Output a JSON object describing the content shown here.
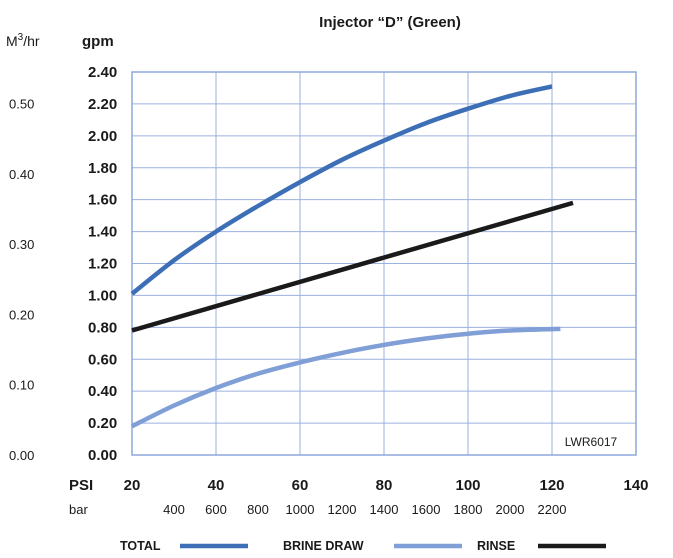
{
  "chart_data": {
    "type": "line",
    "title": "Injector “D” (Green)",
    "y_unit_left": "M³/hr",
    "y_unit_left_base": "M",
    "y_unit_left_sup": "3",
    "y_unit_left_tail": "/hr",
    "y_unit_primary": "gpm",
    "x_unit_primary": "PSI",
    "x_unit_secondary": "bar",
    "code_label": "LWR6017",
    "xlim": [
      20,
      140
    ],
    "ylim": [
      0,
      2.4
    ],
    "x_ticks": [
      20,
      40,
      60,
      80,
      100,
      120,
      140
    ],
    "x_tick_labels": [
      "20",
      "40",
      "60",
      "80",
      "100",
      "120",
      "140"
    ],
    "y_ticks": [
      0,
      0.2,
      0.4,
      0.6,
      0.8,
      1.0,
      1.2,
      1.4,
      1.6,
      1.8,
      2.0,
      2.2,
      2.4
    ],
    "y_tick_labels": [
      "0.00",
      "0.20",
      "0.40",
      "0.60",
      "0.80",
      "1.00",
      "1.20",
      "1.40",
      "1.60",
      "1.80",
      "2.00",
      "2.20",
      "2.40"
    ],
    "m3hr_ticks": [
      0.0,
      0.1,
      0.2,
      0.3,
      0.4,
      0.5
    ],
    "m3hr_tick_labels": [
      "0.00",
      "0.10",
      "0.20",
      "0.30",
      "0.40",
      "0.50"
    ],
    "bar_tick_values": [
      400,
      600,
      800,
      1000,
      1200,
      1400,
      1600,
      1800,
      2000,
      2200
    ],
    "bar_tick_labels": [
      "400",
      "600",
      "800",
      "1000",
      "1200",
      "1400",
      "1600",
      "1800",
      "2000",
      "2200"
    ],
    "grid": true,
    "legend_position": "bottom",
    "series": [
      {
        "name": "TOTAL",
        "color": "#3d6fb6",
        "x": [
          20,
          30,
          40,
          50,
          60,
          70,
          80,
          90,
          100,
          110,
          120
        ],
        "y": [
          1.01,
          1.22,
          1.4,
          1.56,
          1.71,
          1.85,
          1.97,
          2.08,
          2.17,
          2.25,
          2.31
        ]
      },
      {
        "name": "BRINE DRAW",
        "color": "#7f9fd6",
        "x": [
          20,
          30,
          40,
          50,
          60,
          70,
          80,
          90,
          100,
          110,
          122
        ],
        "y": [
          0.18,
          0.31,
          0.42,
          0.51,
          0.58,
          0.64,
          0.69,
          0.73,
          0.76,
          0.78,
          0.79
        ]
      },
      {
        "name": "RINSE",
        "color": "#1a1a1a",
        "x": [
          20,
          125
        ],
        "y": [
          0.78,
          1.58
        ]
      }
    ]
  }
}
